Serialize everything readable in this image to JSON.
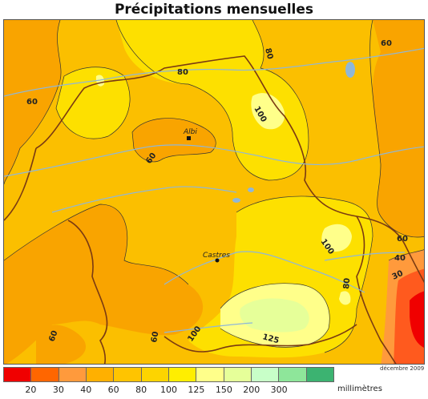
{
  "title": "Précipitations mensuelles",
  "date": "décembre 2009",
  "legend": {
    "colors": [
      "#f00000",
      "#ff6600",
      "#ff9a3c",
      "#ffb000",
      "#ffc400",
      "#fdd400",
      "#ffee00",
      "#ffff8a",
      "#e6ff99",
      "#c8ffc8",
      "#8ee69a",
      "#3cb371"
    ],
    "ticks": [
      "20",
      "30",
      "40",
      "60",
      "80",
      "100",
      "125",
      "150",
      "200",
      "300"
    ],
    "unit": "millimètres"
  },
  "contour_labels": [
    {
      "id": "c60-a",
      "text": "60"
    },
    {
      "id": "c60-b",
      "text": "60"
    },
    {
      "id": "c60-c",
      "text": "60"
    },
    {
      "id": "c60-d",
      "text": "60"
    },
    {
      "id": "c60-e",
      "text": "60"
    },
    {
      "id": "c60-f",
      "text": "60"
    },
    {
      "id": "c80-a",
      "text": "80"
    },
    {
      "id": "c80-b",
      "text": "80"
    },
    {
      "id": "c80-c",
      "text": "80"
    },
    {
      "id": "c100-a",
      "text": "100"
    },
    {
      "id": "c100-b",
      "text": "100"
    },
    {
      "id": "c100-c",
      "text": "100"
    },
    {
      "id": "c125",
      "text": "125"
    },
    {
      "id": "c40",
      "text": "40"
    },
    {
      "id": "c30",
      "text": "30"
    }
  ],
  "cities": [
    {
      "id": "albi",
      "name": "Albi"
    },
    {
      "id": "castres",
      "name": "Castres"
    }
  ]
}
